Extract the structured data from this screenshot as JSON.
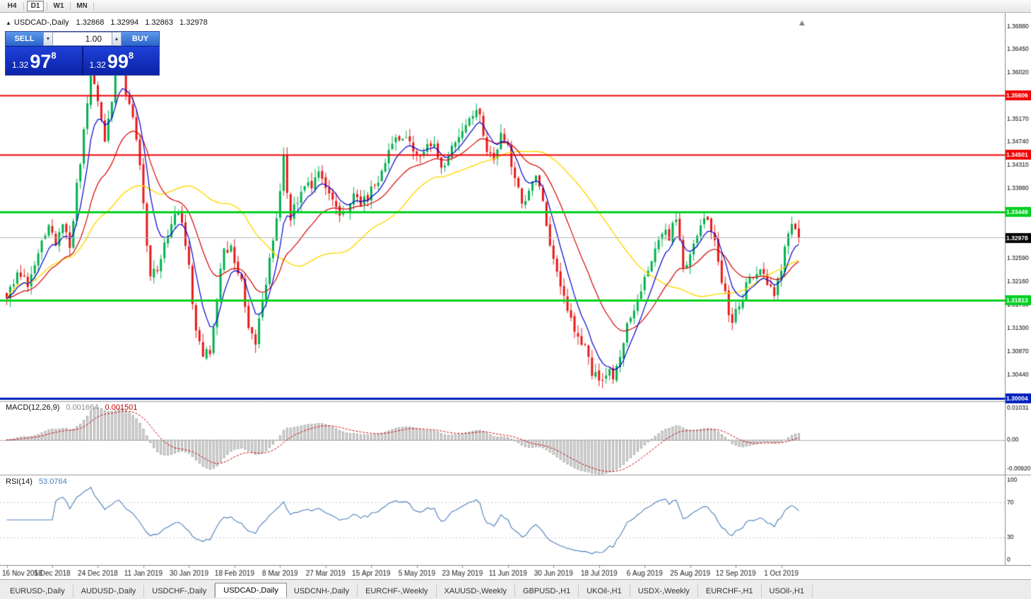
{
  "toolbar": {
    "timeframes": [
      {
        "label": "H4",
        "active": false
      },
      {
        "label": "D1",
        "active": true
      },
      {
        "label": "W1",
        "active": false
      },
      {
        "label": "MN",
        "active": false
      }
    ]
  },
  "chart_header": {
    "symbol_icon": "▲",
    "title": "USDCAD-,Daily",
    "open": "1.32868",
    "high": "1.32994",
    "low": "1.32863",
    "close": "1.32978"
  },
  "trade_panel": {
    "sell_label": "SELL",
    "buy_label": "BUY",
    "volume": "1.00",
    "spin_down": "▼",
    "spin_up": "▲",
    "sell_price": {
      "prefix": "1.32",
      "big": "97",
      "sup": "8"
    },
    "buy_price": {
      "prefix": "1.32",
      "big": "99",
      "sup": "8"
    }
  },
  "indicators": {
    "macd": {
      "label": "MACD(12,26,9)",
      "value_main": "0.001664",
      "value_signal": "0.001501"
    },
    "rsi": {
      "label": "RSI(14)",
      "value": "53.0764"
    }
  },
  "chart_data": {
    "type": "candlestick",
    "symbol": "USDCAD",
    "timeframe": "Daily",
    "candles_total": 227,
    "bars_per_label": 13,
    "price_axis": {
      "current_price": 1.32978,
      "current_price_label": "1.32978",
      "visible_top": 1.37,
      "visible_bottom": 1.2998,
      "ticks": [
        {
          "value": 1.3688,
          "label": "1.36880"
        },
        {
          "value": 1.3645,
          "label": "1.36450"
        },
        {
          "value": 1.3602,
          "label": "1.36020"
        },
        {
          "value": 1.3517,
          "label": "1.35170"
        },
        {
          "value": 1.3474,
          "label": "1.34740"
        },
        {
          "value": 1.3431,
          "label": "1.34310"
        },
        {
          "value": 1.3388,
          "label": "1.33880"
        },
        {
          "value": 1.3259,
          "label": "1.32590"
        },
        {
          "value": 1.3216,
          "label": "1.32160"
        },
        {
          "value": 1.3173,
          "label": "1.31730"
        },
        {
          "value": 1.313,
          "label": "1.31300"
        },
        {
          "value": 1.3087,
          "label": "1.30870"
        },
        {
          "value": 1.3044,
          "label": "1.30440"
        }
      ]
    },
    "h_lines": [
      {
        "value": 1.35606,
        "label": "1.35606",
        "color": "#f00000",
        "width": 2
      },
      {
        "value": 1.34501,
        "label": "1.34501",
        "color": "#f00000",
        "width": 2
      },
      {
        "value": 1.33449,
        "label": "1.33449",
        "color": "#00d020",
        "width": 3
      },
      {
        "value": 1.31813,
        "label": "1.31813",
        "color": "#00d020",
        "width": 3
      },
      {
        "value": 1.30004,
        "label": "1.30004",
        "color": "#0020c0",
        "width": 3
      }
    ],
    "date_labels": [
      "16 Nov 2018",
      "5 Dec 2018",
      "24 Dec 2018",
      "11 Jan 2019",
      "30 Jan 2019",
      "18 Feb 2019",
      "8 Mar 2019",
      "27 Mar 2019",
      "15 Apr 2019",
      "5 May 2019",
      "23 May 2019",
      "11 Jun 2019",
      "30 Jun 2019",
      "18 Jul 2019",
      "6 Aug 2019",
      "25 Aug 2019",
      "12 Sep 2019",
      "1 Oct 2019"
    ],
    "ma_lines": [
      {
        "name": "fast",
        "period": 7,
        "color": "#0000d0"
      },
      {
        "name": "medium",
        "period": 21,
        "color": "#d40000"
      },
      {
        "name": "slow",
        "period": 45,
        "color": "#ffd800"
      }
    ],
    "colors": {
      "up": "#00b050",
      "down": "#e81818",
      "ma_fast": "#0000d0",
      "ma_medium": "#d40000",
      "ma_slow": "#ffd800",
      "rsi": "#4a7ebb",
      "macd_hist_fill": "#e2e2e2",
      "macd_hist_stroke": "#9a9a9a",
      "macd_signal": "#cc0000"
    },
    "macd_axis": {
      "max": 0.01031,
      "min": -0.0092,
      "labels": [
        "0.01031",
        "0.00",
        "-0.00920"
      ]
    },
    "rsi_axis": {
      "labels": [
        "100",
        "70",
        "30",
        "0"
      ],
      "levels": [
        70,
        30
      ]
    },
    "keypoints": [
      [
        0,
        1.3195
      ],
      [
        3,
        1.3225
      ],
      [
        6,
        1.3215
      ],
      [
        9,
        1.3275
      ],
      [
        12,
        1.333
      ],
      [
        14,
        1.3285
      ],
      [
        16,
        1.333
      ],
      [
        18,
        1.3285
      ],
      [
        20,
        1.339
      ],
      [
        22,
        1.349
      ],
      [
        24,
        1.362
      ],
      [
        26,
        1.355
      ],
      [
        28,
        1.3465
      ],
      [
        30,
        1.3555
      ],
      [
        32,
        1.3635
      ],
      [
        34,
        1.357
      ],
      [
        36,
        1.353
      ],
      [
        38,
        1.3435
      ],
      [
        40,
        1.3285
      ],
      [
        41,
        1.3215
      ],
      [
        43,
        1.3245
      ],
      [
        45,
        1.329
      ],
      [
        47,
        1.333
      ],
      [
        49,
        1.3345
      ],
      [
        51,
        1.329
      ],
      [
        52,
        1.324
      ],
      [
        54,
        1.313
      ],
      [
        56,
        1.3085
      ],
      [
        58,
        1.308
      ],
      [
        60,
        1.319
      ],
      [
        62,
        1.327
      ],
      [
        64,
        1.328
      ],
      [
        65,
        1.326
      ],
      [
        67,
        1.322
      ],
      [
        69,
        1.314
      ],
      [
        71,
        1.31
      ],
      [
        73,
        1.3175
      ],
      [
        75,
        1.326
      ],
      [
        77,
        1.334
      ],
      [
        79,
        1.344
      ],
      [
        81,
        1.334
      ],
      [
        83,
        1.337
      ],
      [
        85,
        1.34
      ],
      [
        87,
        1.339
      ],
      [
        89,
        1.342
      ],
      [
        91,
        1.3395
      ],
      [
        93,
        1.336
      ],
      [
        95,
        1.333
      ],
      [
        97,
        1.3355
      ],
      [
        99,
        1.3375
      ],
      [
        101,
        1.3365
      ],
      [
        103,
        1.3375
      ],
      [
        105,
        1.339
      ],
      [
        107,
        1.3425
      ],
      [
        109,
        1.3455
      ],
      [
        111,
        1.3475
      ],
      [
        113,
        1.349
      ],
      [
        115,
        1.3465
      ],
      [
        117,
        1.345
      ],
      [
        119,
        1.3465
      ],
      [
        121,
        1.3475
      ],
      [
        123,
        1.3445
      ],
      [
        125,
        1.343
      ],
      [
        127,
        1.3465
      ],
      [
        129,
        1.348
      ],
      [
        131,
        1.35
      ],
      [
        133,
        1.3525
      ],
      [
        135,
        1.353
      ],
      [
        137,
        1.3455
      ],
      [
        139,
        1.344
      ],
      [
        141,
        1.348
      ],
      [
        143,
        1.346
      ],
      [
        145,
        1.3405
      ],
      [
        147,
        1.3355
      ],
      [
        149,
        1.339
      ],
      [
        151,
        1.3415
      ],
      [
        153,
        1.336
      ],
      [
        155,
        1.329
      ],
      [
        157,
        1.3225
      ],
      [
        159,
        1.319
      ],
      [
        161,
        1.3145
      ],
      [
        163,
        1.311
      ],
      [
        165,
        1.309
      ],
      [
        167,
        1.305
      ],
      [
        169,
        1.3035
      ],
      [
        171,
        1.305
      ],
      [
        173,
        1.3045
      ],
      [
        175,
        1.3085
      ],
      [
        177,
        1.3135
      ],
      [
        179,
        1.3165
      ],
      [
        181,
        1.3205
      ],
      [
        182,
        1.322
      ],
      [
        184,
        1.326
      ],
      [
        186,
        1.33
      ],
      [
        188,
        1.332
      ],
      [
        189,
        1.33
      ],
      [
        191,
        1.333
      ],
      [
        193,
        1.3245
      ],
      [
        195,
        1.3265
      ],
      [
        197,
        1.3295
      ],
      [
        199,
        1.333
      ],
      [
        200,
        1.3325
      ],
      [
        202,
        1.33
      ],
      [
        204,
        1.322
      ],
      [
        206,
        1.316
      ],
      [
        207,
        1.314
      ],
      [
        209,
        1.3175
      ],
      [
        211,
        1.3205
      ],
      [
        212,
        1.323
      ],
      [
        214,
        1.322
      ],
      [
        216,
        1.324
      ],
      [
        218,
        1.32
      ],
      [
        219,
        1.3185
      ],
      [
        221,
        1.3245
      ],
      [
        223,
        1.33
      ],
      [
        224,
        1.333
      ],
      [
        225,
        1.3315
      ],
      [
        226,
        1.32978
      ]
    ]
  },
  "bottom_tabs": {
    "active_index": 3,
    "items": [
      {
        "label": "EURUSD-,Daily"
      },
      {
        "label": "AUDUSD-,Daily"
      },
      {
        "label": "USDCHF-,Daily"
      },
      {
        "label": "USDCAD-,Daily"
      },
      {
        "label": "USDCNH-,Daily"
      },
      {
        "label": "EURCHF-,Weekly"
      },
      {
        "label": "XAUUSD-,Weekly"
      },
      {
        "label": "GBPUSD-,H1"
      },
      {
        "label": "UKOil-,H1"
      },
      {
        "label": "USDX-,Weekly"
      },
      {
        "label": "EURCHF-,H1"
      },
      {
        "label": "USOil-,H1"
      }
    ]
  }
}
